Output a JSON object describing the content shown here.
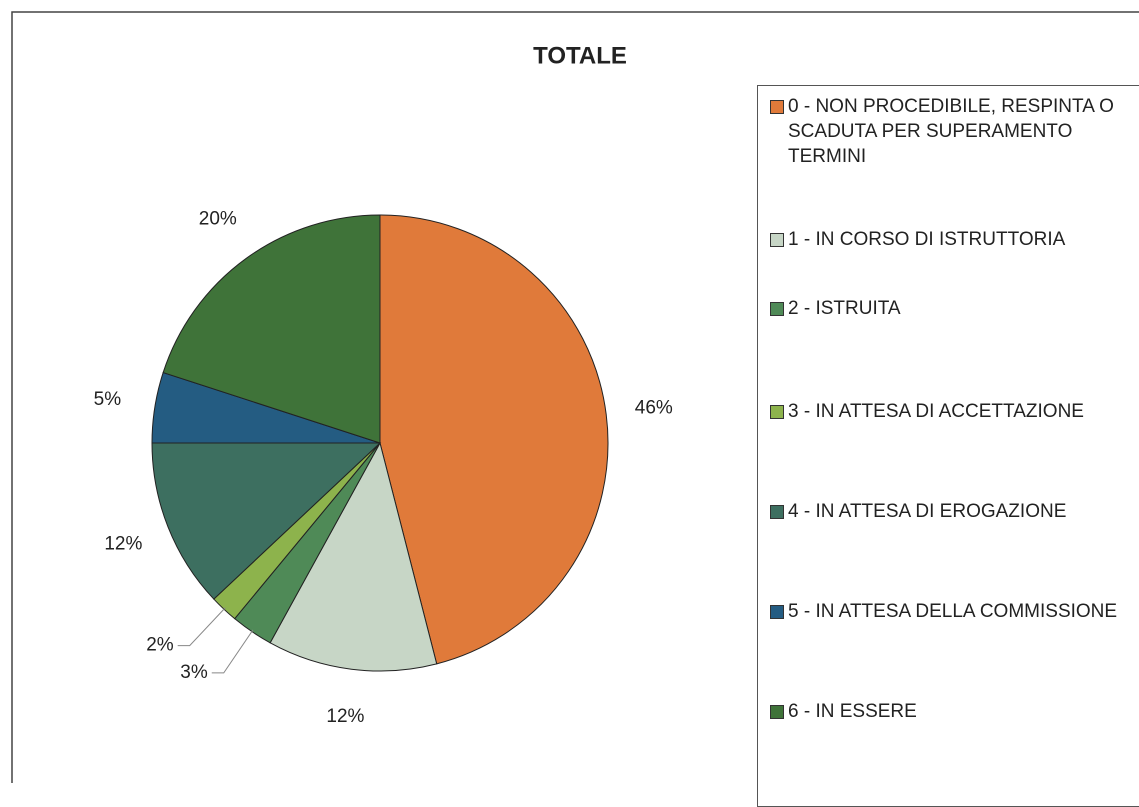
{
  "chart_data": {
    "type": "pie",
    "title": "TOTALE",
    "categories": [
      "0 - NON PROCEDIBILE, RESPINTA O SCADUTA PER SUPERAMENTO TERMINI",
      "1 - IN CORSO DI ISTRUTTORIA",
      "2 - ISTRUITA",
      "3 - IN ATTESA DI ACCETTAZIONE",
      "4 - IN ATTESA DI EROGAZIONE",
      "5 - IN ATTESA DELLA COMMISSIONE",
      "6 - IN ESSERE"
    ],
    "values": [
      46,
      12,
      3,
      2,
      12,
      5,
      20
    ],
    "value_labels": [
      "46%",
      "12%",
      "3%",
      "2%",
      "12%",
      "5%",
      "20%"
    ],
    "colors": [
      "#e07a3a",
      "#c7d6c6",
      "#4f8a57",
      "#8db34c",
      "#3d6f60",
      "#245c82",
      "#3f7339"
    ]
  }
}
